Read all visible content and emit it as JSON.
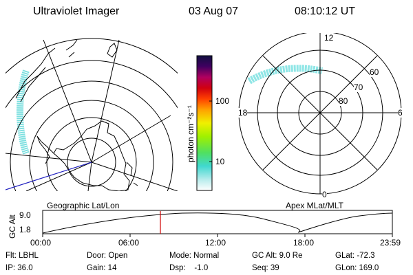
{
  "header": {
    "instrument": "Ultraviolet Imager",
    "date": "03 Aug 07",
    "time": "08:10:12 UT"
  },
  "colorbar": {
    "unit_label": "photon cm⁻²s⁻¹",
    "ticks": [
      "100",
      "10"
    ]
  },
  "left_panel": {
    "caption": "Geographic Lat/Lon"
  },
  "right_panel": {
    "caption": "Apex MLat/MLT",
    "mlt_labels": [
      "12",
      "18",
      "6",
      "0"
    ],
    "mlat_labels": [
      "60",
      "70",
      "80"
    ]
  },
  "altitude_plot": {
    "ylabel": "GC Alt",
    "yticks": [
      "9.0",
      "1.8"
    ],
    "xticks": [
      "00:00",
      "06:00",
      "12:00",
      "18:00",
      "23:59"
    ]
  },
  "info": {
    "flt": "Flt: LBHL",
    "ip": "IP: 36.0",
    "door": "Door: Open",
    "gain": "Gain: 14",
    "mode": "Mode: Normal",
    "dsp": "Dsp:    -1.0",
    "gc_alt": "GC Alt: 9.0 Re",
    "seq": "Seq: 39",
    "glat": "GLat: -72.3",
    "glon": "GLon: 169.0"
  },
  "colors": {
    "background": "#ffffff",
    "line": "#000000",
    "aurora": "#6fdcdc",
    "meridian": "#2020c0",
    "time_marker": "#d00000"
  }
}
